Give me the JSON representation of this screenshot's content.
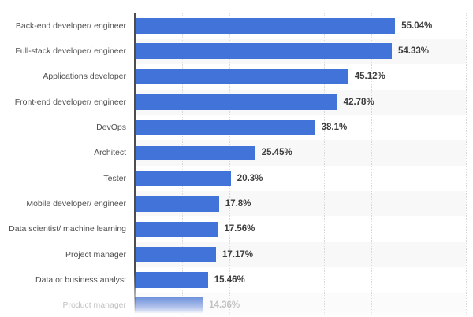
{
  "chart_data": {
    "type": "bar",
    "orientation": "horizontal",
    "title": "",
    "xlabel": "",
    "ylabel": "",
    "categories": [
      "Back-end developer/ engineer",
      "Full-stack developer/ engineer",
      "Applications developer",
      "Front-end developer/ engineer",
      "DevOps",
      "Architect",
      "Tester",
      "Mobile developer/ engineer",
      "Data scientist/ machine learning",
      "Project manager",
      "Data or business analyst",
      "Product manager"
    ],
    "values": [
      55.04,
      54.33,
      45.12,
      42.78,
      38.1,
      25.45,
      20.3,
      17.8,
      17.56,
      17.17,
      15.46,
      14.36
    ],
    "value_labels": [
      "55.04%",
      "54.33%",
      "45.12%",
      "42.78%",
      "38.1%",
      "25.45%",
      "20.3%",
      "17.8%",
      "17.56%",
      "17.17%",
      "15.46%",
      "14.36%"
    ],
    "xlim": [
      0,
      70
    ],
    "gridline_percents": [
      10,
      20,
      30,
      40,
      50,
      60,
      70
    ],
    "grid": "vertical-dotted",
    "legend": "none",
    "striped_rows": "even rows shaded in plot area",
    "faded_row_index": 11,
    "colors": {
      "bar": "#4173d9",
      "stripe": "#f8f8f8",
      "gridline": "#d9d9d9",
      "axis": "#4d4d4d",
      "label_text": "#4f4f4f",
      "value_text": "#3d3d3d",
      "faded_text": "#c2c2c2",
      "faded_bar_top": "#6e92dc",
      "faded_bar_bottom": "#e9eef9"
    }
  }
}
